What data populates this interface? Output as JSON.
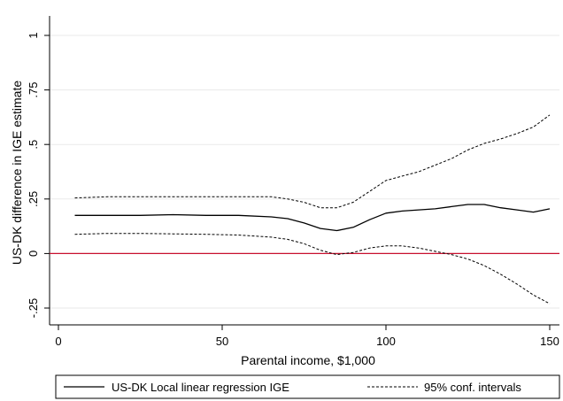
{
  "chart_data": {
    "type": "line",
    "xlabel": "Parental income, $1,000",
    "ylabel": "US-DK difference in IGE estimate",
    "xlim": [
      0,
      150
    ],
    "ylim": [
      -0.25,
      1
    ],
    "x_ticks": [
      0,
      50,
      100,
      150
    ],
    "x_tick_labels": [
      "0",
      "50",
      "100",
      "150"
    ],
    "y_ticks": [
      -0.25,
      0,
      0.25,
      0.5,
      0.75,
      1
    ],
    "y_tick_labels": [
      "-.25",
      "0",
      ".25",
      ".5",
      ".75",
      "1"
    ],
    "grid": "horizontal",
    "legend_position": "bottom",
    "reference_line": {
      "y": 0,
      "color": "#c8102e"
    },
    "series": [
      {
        "name": "US-DK Local linear regression IGE",
        "style": "solid",
        "color": "#000000",
        "x": [
          5,
          15,
          25,
          35,
          45,
          55,
          65,
          70,
          75,
          80,
          85,
          90,
          95,
          100,
          105,
          110,
          115,
          120,
          125,
          130,
          135,
          140,
          145,
          150
        ],
        "y": [
          0.175,
          0.175,
          0.175,
          0.178,
          0.175,
          0.175,
          0.168,
          0.16,
          0.14,
          0.115,
          0.105,
          0.12,
          0.155,
          0.185,
          0.195,
          0.2,
          0.205,
          0.215,
          0.225,
          0.225,
          0.21,
          0.2,
          0.19,
          0.205
        ]
      },
      {
        "name": "95% conf. intervals",
        "style": "dashed",
        "color": "#000000",
        "x": [
          5,
          15,
          25,
          35,
          45,
          55,
          65,
          70,
          75,
          80,
          85,
          90,
          95,
          100,
          105,
          110,
          115,
          120,
          125,
          130,
          135,
          140,
          145,
          150
        ],
        "y": [
          0.255,
          0.26,
          0.26,
          0.26,
          0.26,
          0.26,
          0.26,
          0.25,
          0.235,
          0.21,
          0.21,
          0.235,
          0.285,
          0.335,
          0.355,
          0.375,
          0.405,
          0.435,
          0.475,
          0.505,
          0.525,
          0.55,
          0.58,
          0.635
        ]
      },
      {
        "name": "",
        "style": "dashed",
        "color": "#000000",
        "x": [
          5,
          15,
          25,
          35,
          45,
          55,
          65,
          70,
          75,
          80,
          85,
          90,
          95,
          100,
          105,
          110,
          115,
          120,
          125,
          130,
          135,
          140,
          145,
          150
        ],
        "y": [
          0.088,
          0.092,
          0.092,
          0.09,
          0.088,
          0.085,
          0.075,
          0.065,
          0.045,
          0.015,
          -0.005,
          0.005,
          0.025,
          0.035,
          0.035,
          0.025,
          0.01,
          -0.005,
          -0.025,
          -0.055,
          -0.095,
          -0.14,
          -0.19,
          -0.23
        ]
      }
    ],
    "legend": [
      {
        "label": "US-DK Local linear regression IGE",
        "style": "solid"
      },
      {
        "label": "95% conf. intervals",
        "style": "dashed"
      }
    ]
  }
}
